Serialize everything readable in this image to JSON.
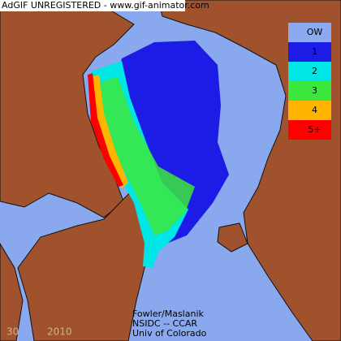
{
  "watermark": "AdGIF UNREGISTERED - www.gif-animator.com",
  "legend": [
    {
      "label": "OW",
      "color": "#8caaf0"
    },
    {
      "label": "1",
      "color": "#1c1ce6"
    },
    {
      "label": "2",
      "color": "#00e6e6"
    },
    {
      "label": "3",
      "color": "#3ce63c"
    },
    {
      "label": "4",
      "color": "#ffb400"
    },
    {
      "label": "5+",
      "color": "#ff0000"
    }
  ],
  "credits": [
    "Fowler/Maslanik",
    "NSIDC -- CCAR",
    "Univ of Colorado"
  ],
  "frame": "30",
  "year": "2010"
}
